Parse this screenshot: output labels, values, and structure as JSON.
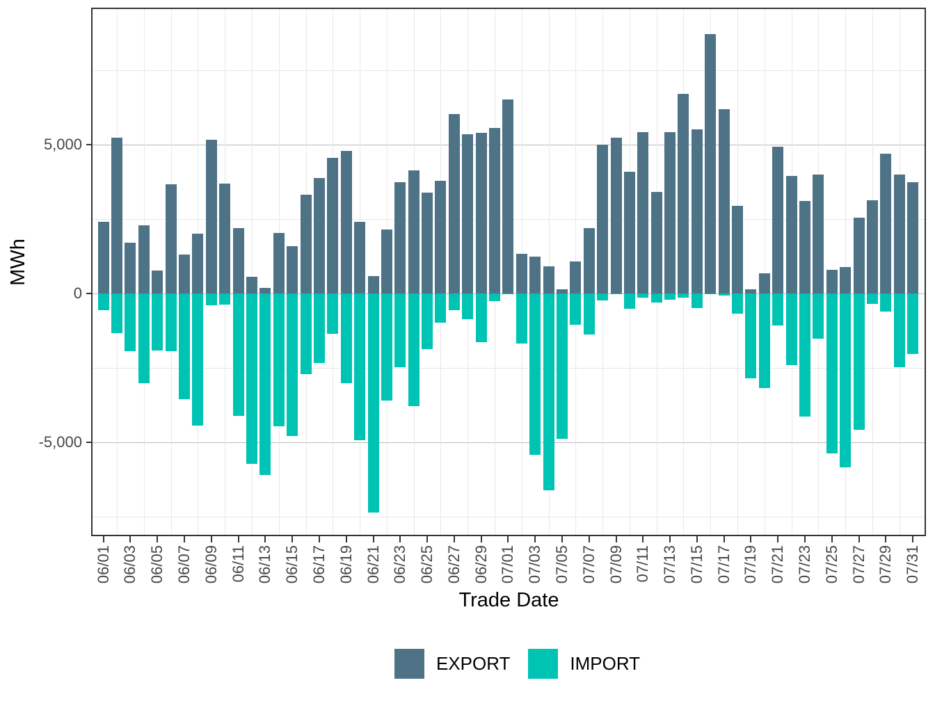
{
  "chart_data": {
    "type": "bar",
    "title": "",
    "xlabel": "Trade Date",
    "ylabel": "MWh",
    "legend_position": "bottom",
    "grid": true,
    "ylim": [
      -8100,
      9550
    ],
    "yticks": [
      {
        "value": 5000,
        "label": "5,000"
      },
      {
        "value": 0,
        "label": "0"
      },
      {
        "value": -5000,
        "label": "-5,000"
      }
    ],
    "major_gridlines": [
      5000,
      0,
      -5000
    ],
    "minor_gridlines": [
      7500,
      2500,
      -2500,
      -7500
    ],
    "x_tick_labels": [
      "06/01",
      "06/03",
      "06/05",
      "06/07",
      "06/09",
      "06/11",
      "06/13",
      "06/15",
      "06/17",
      "06/19",
      "06/21",
      "06/23",
      "06/25",
      "06/27",
      "06/29",
      "07/01",
      "07/03",
      "07/05",
      "07/07",
      "07/09",
      "07/11",
      "07/13",
      "07/15",
      "07/17",
      "07/19",
      "07/21",
      "07/23",
      "07/25",
      "07/27",
      "07/29",
      "07/31"
    ],
    "categories": [
      "06/01",
      "06/02",
      "06/03",
      "06/04",
      "06/05",
      "06/06",
      "06/07",
      "06/08",
      "06/09",
      "06/10",
      "06/11",
      "06/12",
      "06/13",
      "06/14",
      "06/15",
      "06/16",
      "06/17",
      "06/18",
      "06/19",
      "06/20",
      "06/21",
      "06/22",
      "06/23",
      "06/24",
      "06/25",
      "06/26",
      "06/27",
      "06/28",
      "06/29",
      "06/30",
      "07/01",
      "07/02",
      "07/03",
      "07/04",
      "07/05",
      "07/06",
      "07/07",
      "07/08",
      "07/09",
      "07/10",
      "07/11",
      "07/12",
      "07/13",
      "07/14",
      "07/15",
      "07/16",
      "07/17",
      "07/18",
      "07/19",
      "07/20",
      "07/21",
      "07/22",
      "07/23",
      "07/24",
      "07/25",
      "07/26",
      "07/27",
      "07/28",
      "07/29",
      "07/30",
      "07/31"
    ],
    "series": [
      {
        "name": "EXPORT",
        "color": "#4e7286",
        "values": [
          2400,
          5240,
          1700,
          2280,
          780,
          3670,
          1310,
          2000,
          5170,
          3690,
          2200,
          570,
          180,
          2030,
          1600,
          3320,
          3890,
          4560,
          4800,
          2400,
          590,
          2150,
          3740,
          4130,
          3390,
          3780,
          6020,
          5360,
          5400,
          5550,
          6520,
          1330,
          1250,
          920,
          140,
          1070,
          2190,
          5010,
          5230,
          4100,
          5420,
          3420,
          5420,
          6700,
          5520,
          8710,
          6200,
          2940,
          140,
          670,
          4930,
          3960,
          3100,
          4000,
          790,
          880,
          2540,
          3140,
          4700,
          4000,
          3740
        ]
      },
      {
        "name": "IMPORT",
        "color": "#00c4b3",
        "values": [
          -560,
          -1340,
          -1940,
          -3010,
          -1920,
          -1940,
          -3540,
          -4450,
          -400,
          -370,
          -4120,
          -5720,
          -6100,
          -4470,
          -4800,
          -2720,
          -2330,
          -1360,
          -3010,
          -4940,
          -7350,
          -3600,
          -2480,
          -3790,
          -1860,
          -970,
          -560,
          -870,
          -1630,
          -260,
          -20,
          -1690,
          -5430,
          -6610,
          -4880,
          -1060,
          -1390,
          -240,
          -30,
          -510,
          -130,
          -300,
          -200,
          -140,
          -490,
          -30,
          -70,
          -680,
          -2860,
          -3180,
          -1070,
          -2410,
          -4140,
          -1510,
          -5370,
          -5850,
          -4570,
          -340,
          -610,
          -2470,
          -2040
        ]
      }
    ]
  },
  "legend": {
    "export_label": "EXPORT",
    "import_label": "IMPORT"
  }
}
